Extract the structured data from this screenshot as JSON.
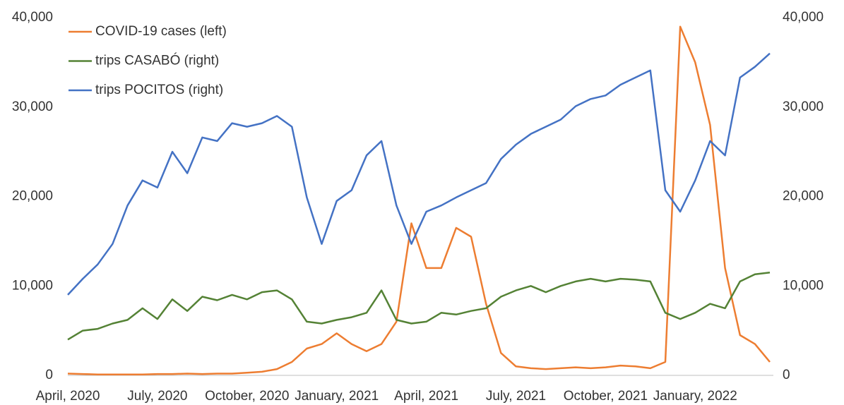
{
  "chart_data": {
    "type": "line",
    "categories": [
      "April, 2020",
      null,
      null,
      null,
      null,
      null,
      "July, 2020",
      null,
      null,
      null,
      null,
      null,
      "October, 2020",
      null,
      null,
      null,
      null,
      null,
      "January, 2021",
      null,
      null,
      null,
      null,
      null,
      "April, 2021",
      null,
      null,
      null,
      null,
      null,
      "July, 2021",
      null,
      null,
      null,
      null,
      null,
      "October, 2021",
      null,
      null,
      null,
      null,
      null,
      "January, 2022",
      null,
      null,
      null,
      null,
      null
    ],
    "series": [
      {
        "name": "COVID-19 cases (left)",
        "color": "#ed7d31",
        "axis": "y",
        "values": [
          200,
          150,
          100,
          100,
          100,
          100,
          150,
          150,
          200,
          150,
          200,
          200,
          300,
          400,
          700,
          1500,
          3000,
          3500,
          4700,
          3500,
          2700,
          3500,
          6000,
          17000,
          12000,
          12000,
          16500,
          15500,
          8000,
          2500,
          1000,
          800,
          700,
          800,
          900,
          800,
          900,
          1100,
          1000,
          800,
          1500,
          39000,
          35000,
          28000,
          12000,
          4500,
          3500,
          1500
        ]
      },
      {
        "name": "trips CASABÓ (right)",
        "color": "#548235",
        "axis": "y2",
        "values": [
          4000,
          5000,
          5200,
          5800,
          6200,
          7500,
          6300,
          8500,
          7200,
          8800,
          8400,
          9000,
          8500,
          9300,
          9500,
          8500,
          6000,
          5800,
          6200,
          6500,
          7000,
          9500,
          6200,
          5800,
          6000,
          7000,
          6800,
          7200,
          7500,
          8800,
          9500,
          10000,
          9300,
          10000,
          10500,
          10800,
          10500,
          10800,
          10700,
          10500,
          7000,
          6300,
          7000,
          8000,
          7500,
          10500,
          11300,
          11500
        ]
      },
      {
        "name": "trips POCITOS (right)",
        "color": "#4472c4",
        "axis": "y2",
        "values": [
          9000,
          10800,
          12400,
          14700,
          19000,
          21800,
          21000,
          25000,
          22600,
          26600,
          26200,
          28200,
          27800,
          28200,
          29000,
          27800,
          19900,
          14700,
          19500,
          20700,
          24600,
          26200,
          19000,
          14700,
          18300,
          19000,
          19900,
          20700,
          21500,
          24200,
          25800,
          27000,
          27800,
          28600,
          30100,
          30900,
          31300,
          32500,
          33300,
          34100,
          20700,
          18300,
          21800,
          26200,
          24600,
          33300,
          34500,
          36000
        ]
      }
    ],
    "ylim": [
      0,
      40000
    ],
    "yticks": [
      0,
      {
        "value": 10000,
        "label": "10,000"
      },
      {
        "value": 20000,
        "label": "20,000"
      },
      {
        "value": 30000,
        "label": "30,000"
      },
      {
        "value": 40000,
        "label": "40,000"
      }
    ],
    "y2lim": [
      0,
      40000
    ],
    "y2ticks": [
      0,
      {
        "value": 10000,
        "label": "10,000"
      },
      {
        "value": 20000,
        "label": "20,000"
      },
      {
        "value": 30000,
        "label": "30,000"
      },
      {
        "value": 40000,
        "label": "40,000"
      }
    ],
    "grid": false,
    "legend": "top-left"
  }
}
